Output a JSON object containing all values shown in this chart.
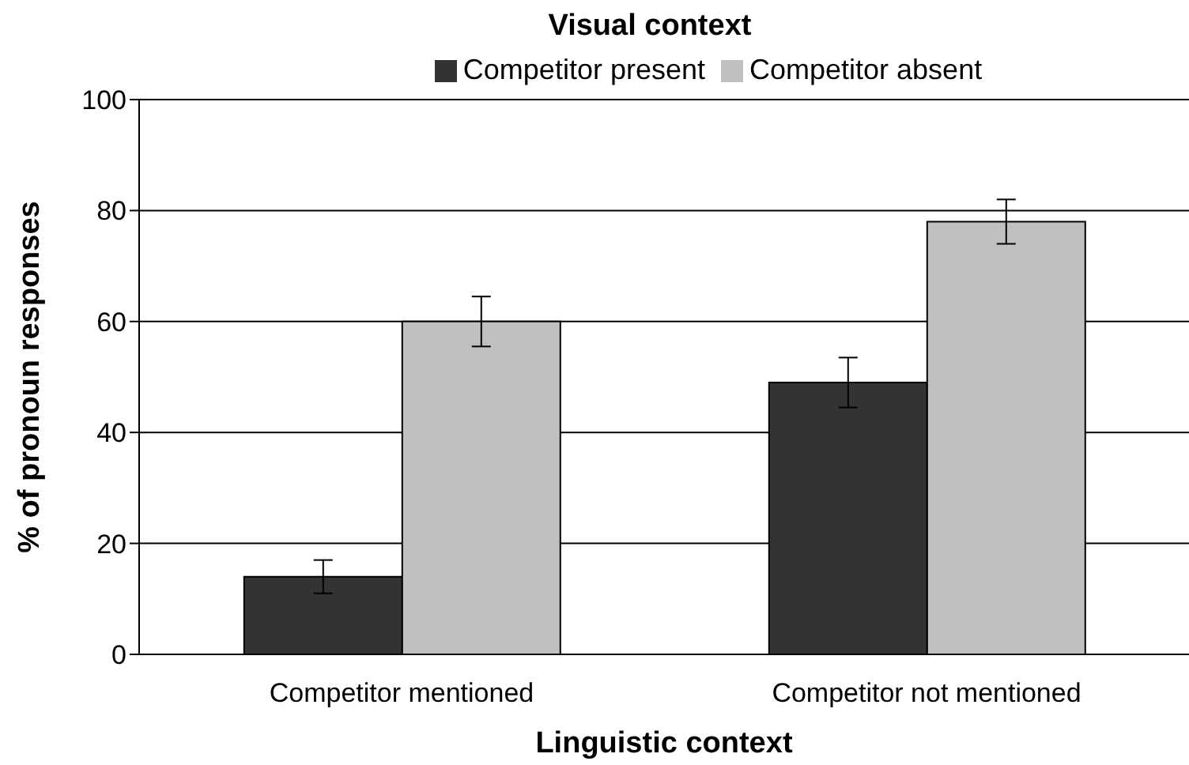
{
  "chart_data": {
    "type": "bar",
    "title": "Visual context",
    "xlabel": "Linguistic context",
    "ylabel": "% of pronoun responses",
    "categories": [
      "Competitor mentioned",
      "Competitor not mentioned"
    ],
    "series": [
      {
        "name": "Competitor present",
        "color": "#333333",
        "values": [
          14,
          49
        ],
        "errors": [
          3,
          4.5
        ]
      },
      {
        "name": "Competitor absent",
        "color": "#c0c0c0",
        "values": [
          60,
          78
        ],
        "errors": [
          4.5,
          4
        ]
      }
    ],
    "ylim": [
      0,
      100
    ],
    "yticks": [
      0,
      20,
      40,
      60,
      80,
      100
    ],
    "grid": "y",
    "legend": "top"
  }
}
